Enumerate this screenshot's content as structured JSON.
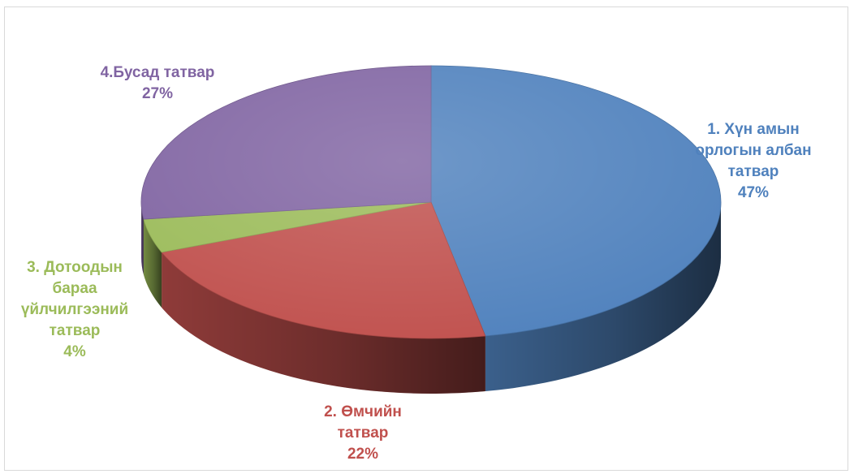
{
  "chart_data": {
    "type": "pie",
    "title": "",
    "slices": [
      {
        "label_lines": [
          "1. Хүн амын",
          "орлогын албан",
          "татвар"
        ],
        "value": 47,
        "value_label": "47%",
        "color": "#4f81bd",
        "label_color": "#4f81bd"
      },
      {
        "label_lines": [
          "2. Өмчийн",
          "татвар"
        ],
        "value": 22,
        "value_label": "22%",
        "color": "#c0504d",
        "label_color": "#c0504d"
      },
      {
        "label_lines": [
          "3. Дотоодын",
          "бараа",
          "үйлчилгээний",
          "татвар"
        ],
        "value": 4,
        "value_label": "4%",
        "color": "#9bbb59",
        "label_color": "#9bbb59"
      },
      {
        "label_lines": [
          "4.Бусад татвар"
        ],
        "value": 27,
        "value_label": "27%",
        "color": "#8064a2",
        "label_color": "#8064a2"
      }
    ],
    "legend": "none",
    "style": "3d-pie"
  }
}
